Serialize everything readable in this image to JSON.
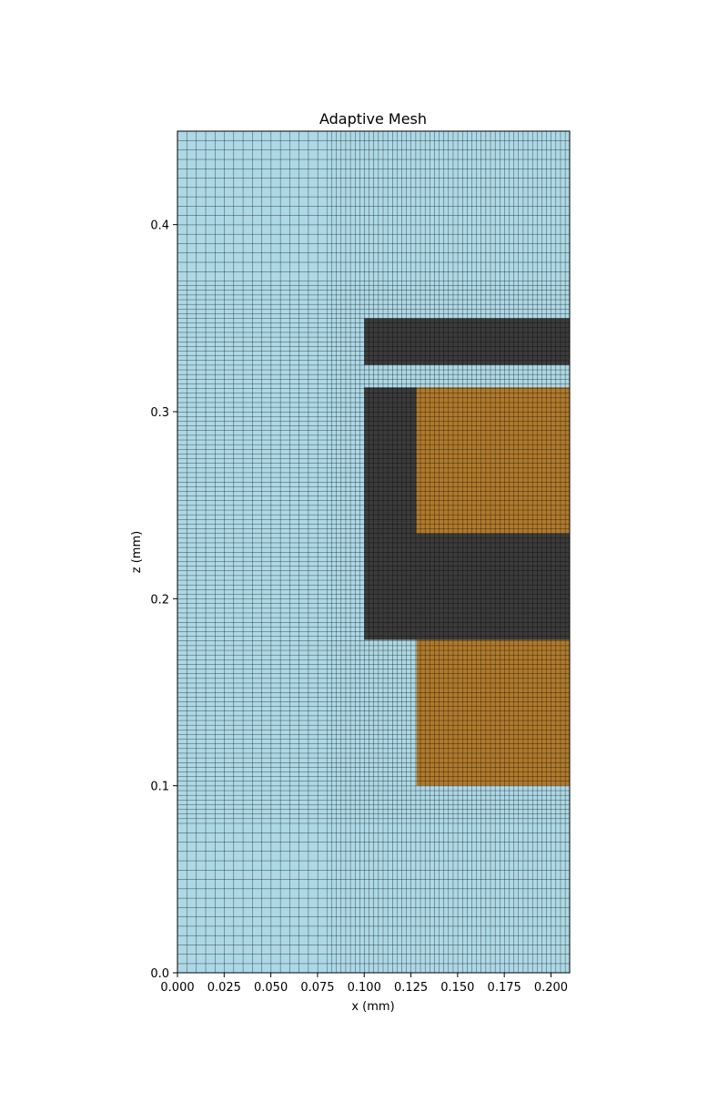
{
  "chart_data": {
    "type": "heatmap",
    "title": "Adaptive Mesh",
    "xlabel": "x (mm)",
    "ylabel": "z (mm)",
    "xlim": [
      0.0,
      0.21
    ],
    "ylim": [
      0.0,
      0.45
    ],
    "xticks": [
      0.0,
      0.025,
      0.05,
      0.075,
      0.1,
      0.125,
      0.15,
      0.175,
      0.2
    ],
    "xtick_labels": [
      "0.000",
      "0.025",
      "0.050",
      "0.075",
      "0.100",
      "0.125",
      "0.150",
      "0.175",
      "0.200"
    ],
    "yticks": [
      0.0,
      0.1,
      0.2,
      0.3,
      0.4
    ],
    "ytick_labels": [
      "0.0",
      "0.1",
      "0.2",
      "0.3",
      "0.4"
    ],
    "grid": false,
    "colors": {
      "background_cell": "#add8e6",
      "dark_region": "#3b3b3b",
      "conductor_region": "#b07a2c",
      "mesh_line": "#000000"
    },
    "mesh_zones": [
      {
        "name": "coarse",
        "x": [
          0.0,
          0.08
        ],
        "z": [
          0.0,
          0.08
        ],
        "dx": 0.005,
        "dz": 0.005
      },
      {
        "name": "coarse",
        "x": [
          0.0,
          0.08
        ],
        "z": [
          0.37,
          0.45
        ],
        "dx": 0.005,
        "dz": 0.005
      },
      {
        "name": "medium",
        "x": [
          0.0,
          0.08
        ],
        "z": [
          0.08,
          0.37
        ],
        "dx": 0.005,
        "dz": 0.0025
      },
      {
        "name": "medium",
        "x": [
          0.08,
          0.21
        ],
        "z": [
          0.0,
          0.08
        ],
        "dx": 0.0025,
        "dz": 0.005
      },
      {
        "name": "medium",
        "x": [
          0.08,
          0.21
        ],
        "z": [
          0.37,
          0.45
        ],
        "dx": 0.0025,
        "dz": 0.005
      },
      {
        "name": "fine",
        "x": [
          0.08,
          0.21
        ],
        "z": [
          0.08,
          0.37
        ],
        "dx": 0.0025,
        "dz": 0.0025
      }
    ],
    "regions": [
      {
        "material": "dark",
        "x": [
          0.1,
          0.21
        ],
        "z": [
          0.325,
          0.35
        ]
      },
      {
        "material": "dark",
        "x": [
          0.1,
          0.21
        ],
        "z": [
          0.178,
          0.313
        ]
      },
      {
        "material": "conductor",
        "x": [
          0.128,
          0.21
        ],
        "z": [
          0.235,
          0.313
        ]
      },
      {
        "material": "conductor",
        "x": [
          0.128,
          0.21
        ],
        "z": [
          0.1,
          0.178
        ]
      }
    ]
  }
}
